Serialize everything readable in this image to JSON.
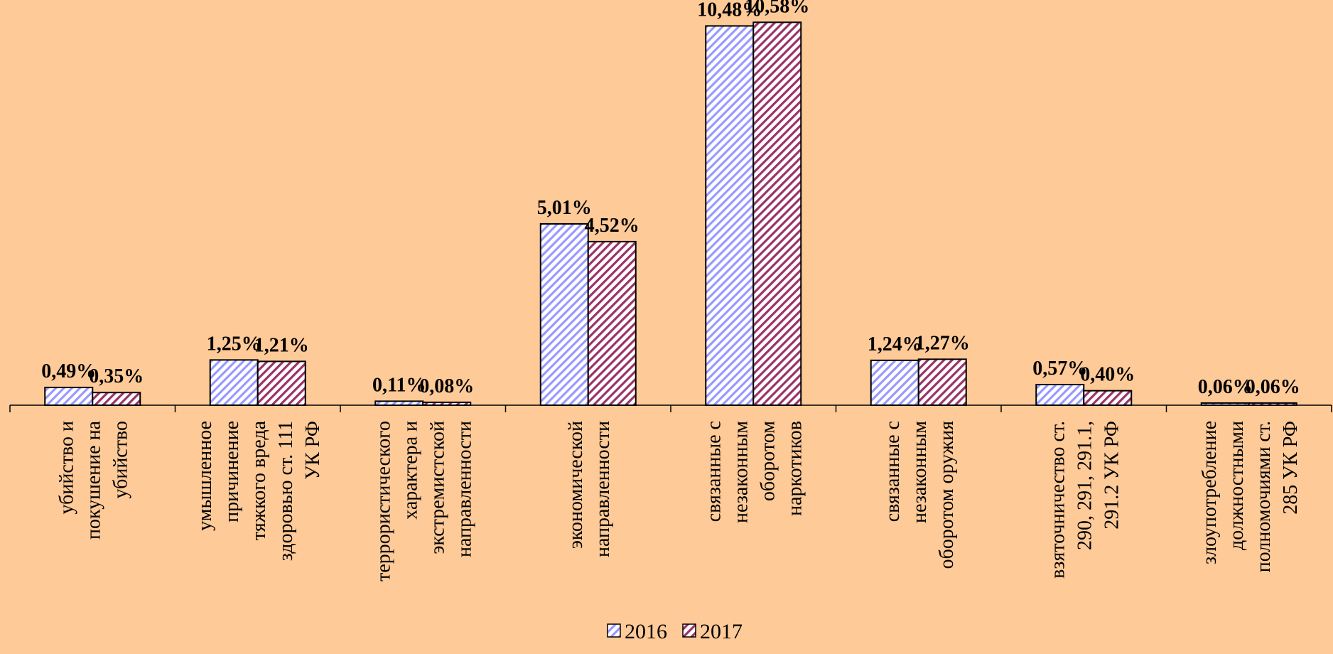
{
  "chart_data": {
    "type": "bar",
    "title": "",
    "xlabel": "",
    "ylabel": "",
    "categories": [
      [
        "убийство и",
        "покушение на",
        "убийство"
      ],
      [
        "умышленное",
        "причинение",
        "тяжкого вреда",
        "здоровью ст. 111",
        "УК РФ"
      ],
      [
        "террористического",
        "характера и",
        "экстремистской",
        "направленности"
      ],
      [
        "экономической",
        "направленности"
      ],
      [
        "связанные с",
        "незаконным",
        "оборотом",
        "наркотиков"
      ],
      [
        "связанные с",
        "незаконным",
        "оборотом оружия"
      ],
      [
        "взяточничество ст.",
        "290, 291, 291.1,",
        "291.2 УК РФ"
      ],
      [
        "злоупотребление",
        "должностными",
        "полномочиями ст.",
        "285 УК РФ"
      ]
    ],
    "series": [
      {
        "name": "2016",
        "values": [
          0.49,
          1.25,
          0.11,
          5.01,
          10.48,
          1.24,
          0.57,
          0.06
        ],
        "labels": [
          "0,49%",
          "1,25%",
          "0,11%",
          "5,01%",
          "10,48%",
          "1,24%",
          "0,57%",
          "0,06%"
        ],
        "color": "#9999FF"
      },
      {
        "name": "2017",
        "values": [
          0.35,
          1.21,
          0.08,
          4.52,
          10.58,
          1.27,
          0.4,
          0.06
        ],
        "labels": [
          "0,35%",
          "1,21%",
          "0,08%",
          "4,52%",
          "10,58%",
          "1,27%",
          "0,40%",
          "0,06%"
        ],
        "color": "#993366"
      }
    ],
    "ylim": [
      0,
      11
    ],
    "grid": false,
    "legend": "bottom-center"
  }
}
